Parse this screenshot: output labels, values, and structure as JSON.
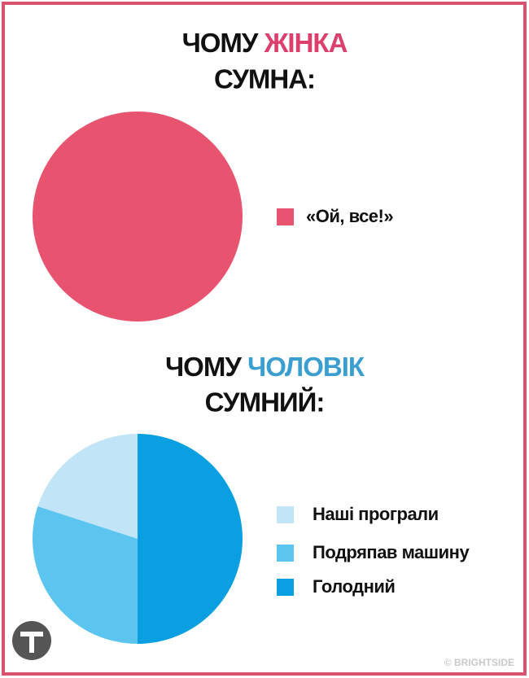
{
  "chart_data": [
    {
      "type": "pie",
      "title": {
        "lead": "ЧОМУ",
        "subject": "ЖІНКА",
        "end": "СУМНА:"
      },
      "title_highlight_color": "#dc3f6b",
      "categories": [
        "«Ой, все!»"
      ],
      "values": [
        100
      ],
      "colors": [
        "#e8546f"
      ]
    },
    {
      "type": "pie",
      "title": {
        "lead": "ЧОМУ",
        "subject": "ЧОЛОВІК",
        "end": "СУМНИЙ:"
      },
      "title_highlight_color": "#3a9fd0",
      "categories": [
        "Наші програли",
        "Подряпав машину",
        "Голодний"
      ],
      "values": [
        20,
        30,
        50
      ],
      "colors": [
        "#c2e4f7",
        "#5bc4ef",
        "#0a9fe0"
      ]
    }
  ],
  "watermark": "© BRIGHTSIDE"
}
